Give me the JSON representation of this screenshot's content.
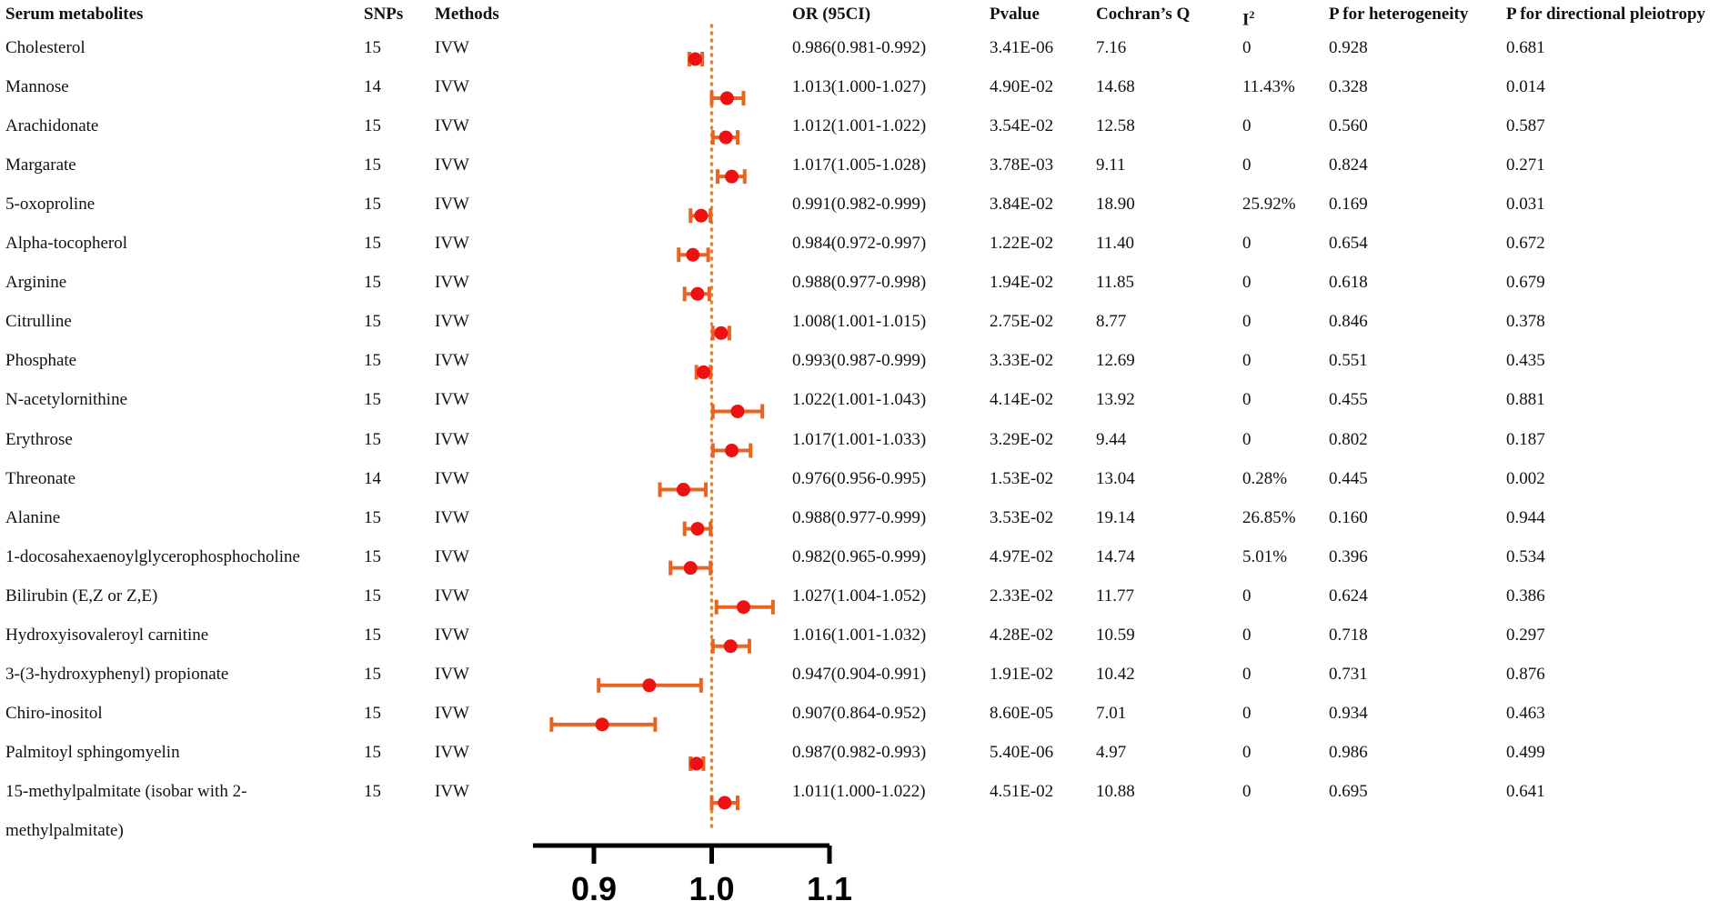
{
  "chart_data": {
    "type": "forest",
    "title": "",
    "xlabel": "",
    "ylabel": "",
    "xlim": [
      0.85,
      1.1
    ],
    "reference_line": 1.0,
    "x_ticks": [
      "0.9",
      "1.0",
      "1.1"
    ],
    "x_tick_values": [
      0.9,
      1.0,
      1.1
    ],
    "colors": {
      "point": "#ee1111",
      "ci": "#e86420",
      "ref": "#e8862a",
      "axis": "#000000"
    },
    "headers": {
      "metabolite": "Serum metabolites",
      "snps": "SNPs",
      "methods": "Methods",
      "or": "OR (95CI)",
      "pvalue": "Pvalue",
      "q": "Cochran’s Q",
      "i2_base": "I",
      "i2_sup": "2",
      "p_het": "P for heterogeneity",
      "p_pleio": "P for directional pleiotropy"
    },
    "rows": [
      {
        "name": "Cholesterol",
        "name2": "",
        "snps": "15",
        "method": "IVW",
        "or_text": "0.986(0.981-0.992)",
        "or": 0.986,
        "lo": 0.981,
        "hi": 0.992,
        "pvalue": "3.41E-06",
        "q": "7.16",
        "i2": "0",
        "p_het": "0.928",
        "p_pleio": "0.681"
      },
      {
        "name": "Mannose",
        "name2": "",
        "snps": "14",
        "method": "IVW",
        "or_text": "1.013(1.000-1.027)",
        "or": 1.013,
        "lo": 1.0,
        "hi": 1.027,
        "pvalue": "4.90E-02",
        "q": "14.68",
        "i2": "11.43%",
        "p_het": "0.328",
        "p_pleio": "0.014"
      },
      {
        "name": "Arachidonate",
        "name2": "",
        "snps": "15",
        "method": "IVW",
        "or_text": "1.012(1.001-1.022)",
        "or": 1.012,
        "lo": 1.001,
        "hi": 1.022,
        "pvalue": "3.54E-02",
        "q": "12.58",
        "i2": "0",
        "p_het": "0.560",
        "p_pleio": "0.587"
      },
      {
        "name": "Margarate",
        "name2": "",
        "snps": "15",
        "method": "IVW",
        "or_text": "1.017(1.005-1.028)",
        "or": 1.017,
        "lo": 1.005,
        "hi": 1.028,
        "pvalue": "3.78E-03",
        "q": "9.11",
        "i2": "0",
        "p_het": "0.824",
        "p_pleio": "0.271"
      },
      {
        "name": "5-oxoproline",
        "name2": "",
        "snps": "15",
        "method": "IVW",
        "or_text": "0.991(0.982-0.999)",
        "or": 0.991,
        "lo": 0.982,
        "hi": 0.999,
        "pvalue": "3.84E-02",
        "q": "18.90",
        "i2": "25.92%",
        "p_het": "0.169",
        "p_pleio": "0.031"
      },
      {
        "name": "Alpha-tocopherol",
        "name2": "",
        "snps": "15",
        "method": "IVW",
        "or_text": "0.984(0.972-0.997)",
        "or": 0.984,
        "lo": 0.972,
        "hi": 0.997,
        "pvalue": "1.22E-02",
        "q": "11.40",
        "i2": "0",
        "p_het": "0.654",
        "p_pleio": "0.672"
      },
      {
        "name": "Arginine",
        "name2": "",
        "snps": "15",
        "method": "IVW",
        "or_text": "0.988(0.977-0.998)",
        "or": 0.988,
        "lo": 0.977,
        "hi": 0.998,
        "pvalue": "1.94E-02",
        "q": "11.85",
        "i2": "0",
        "p_het": "0.618",
        "p_pleio": "0.679"
      },
      {
        "name": "Citrulline",
        "name2": "",
        "snps": "15",
        "method": "IVW",
        "or_text": "1.008(1.001-1.015)",
        "or": 1.008,
        "lo": 1.001,
        "hi": 1.015,
        "pvalue": "2.75E-02",
        "q": "8.77",
        "i2": "0",
        "p_het": "0.846",
        "p_pleio": "0.378"
      },
      {
        "name": "Phosphate",
        "name2": "",
        "snps": "15",
        "method": "IVW",
        "or_text": "0.993(0.987-0.999)",
        "or": 0.993,
        "lo": 0.987,
        "hi": 0.999,
        "pvalue": "3.33E-02",
        "q": "12.69",
        "i2": "0",
        "p_het": "0.551",
        "p_pleio": "0.435"
      },
      {
        "name": "N-acetylornithine",
        "name2": "",
        "snps": "15",
        "method": "IVW",
        "or_text": "1.022(1.001-1.043)",
        "or": 1.022,
        "lo": 1.001,
        "hi": 1.043,
        "pvalue": "4.14E-02",
        "q": "13.92",
        "i2": "0",
        "p_het": "0.455",
        "p_pleio": "0.881"
      },
      {
        "name": "Erythrose",
        "name2": "",
        "snps": "15",
        "method": "IVW",
        "or_text": "1.017(1.001-1.033)",
        "or": 1.017,
        "lo": 1.001,
        "hi": 1.033,
        "pvalue": "3.29E-02",
        "q": "9.44",
        "i2": "0",
        "p_het": "0.802",
        "p_pleio": "0.187"
      },
      {
        "name": "Threonate",
        "name2": "",
        "snps": "14",
        "method": "IVW",
        "or_text": "0.976(0.956-0.995)",
        "or": 0.976,
        "lo": 0.956,
        "hi": 0.995,
        "pvalue": "1.53E-02",
        "q": "13.04",
        "i2": "0.28%",
        "p_het": "0.445",
        "p_pleio": "0.002"
      },
      {
        "name": "Alanine",
        "name2": "",
        "snps": "15",
        "method": "IVW",
        "or_text": "0.988(0.977-0.999)",
        "or": 0.988,
        "lo": 0.977,
        "hi": 0.999,
        "pvalue": "3.53E-02",
        "q": "19.14",
        "i2": "26.85%",
        "p_het": "0.160",
        "p_pleio": "0.944"
      },
      {
        "name": "1-docosahexaenoylglycerophosphocholine",
        "name2": "",
        "snps": "15",
        "method": "IVW",
        "or_text": "0.982(0.965-0.999)",
        "or": 0.982,
        "lo": 0.965,
        "hi": 0.999,
        "pvalue": "4.97E-02",
        "q": "14.74",
        "i2": "5.01%",
        "p_het": "0.396",
        "p_pleio": "0.534"
      },
      {
        "name": "Bilirubin (E,Z or Z,E)",
        "name2": "",
        "snps": "15",
        "method": "IVW",
        "or_text": "1.027(1.004-1.052)",
        "or": 1.027,
        "lo": 1.004,
        "hi": 1.052,
        "pvalue": "2.33E-02",
        "q": "11.77",
        "i2": "0",
        "p_het": "0.624",
        "p_pleio": "0.386"
      },
      {
        "name": "Hydroxyisovaleroyl carnitine",
        "name2": "",
        "snps": "15",
        "method": "IVW",
        "or_text": "1.016(1.001-1.032)",
        "or": 1.016,
        "lo": 1.001,
        "hi": 1.032,
        "pvalue": "4.28E-02",
        "q": "10.59",
        "i2": "0",
        "p_het": "0.718",
        "p_pleio": "0.297"
      },
      {
        "name": "3-(3-hydroxyphenyl) propionate",
        "name2": "",
        "snps": "15",
        "method": "IVW",
        "or_text": "0.947(0.904-0.991)",
        "or": 0.947,
        "lo": 0.904,
        "hi": 0.991,
        "pvalue": "1.91E-02",
        "q": "10.42",
        "i2": "0",
        "p_het": "0.731",
        "p_pleio": "0.876"
      },
      {
        "name": "Chiro-inositol",
        "name2": "",
        "snps": "15",
        "method": "IVW",
        "or_text": "0.907(0.864-0.952)",
        "or": 0.907,
        "lo": 0.864,
        "hi": 0.952,
        "pvalue": "8.60E-05",
        "q": "7.01",
        "i2": "0",
        "p_het": "0.934",
        "p_pleio": "0.463"
      },
      {
        "name": "Palmitoyl sphingomyelin",
        "name2": "",
        "snps": "15",
        "method": "IVW",
        "or_text": "0.987(0.982-0.993)",
        "or": 0.987,
        "lo": 0.982,
        "hi": 0.993,
        "pvalue": "5.40E-06",
        "q": "4.97",
        "i2": "0",
        "p_het": "0.986",
        "p_pleio": "0.499"
      },
      {
        "name": "15-methylpalmitate (isobar with 2-",
        "name2": "methylpalmitate)",
        "snps": "15",
        "method": "IVW",
        "or_text": "1.011(1.000-1.022)",
        "or": 1.011,
        "lo": 1.0,
        "hi": 1.022,
        "pvalue": "4.51E-02",
        "q": "10.88",
        "i2": "0",
        "p_het": "0.695",
        "p_pleio": "0.641"
      }
    ]
  }
}
